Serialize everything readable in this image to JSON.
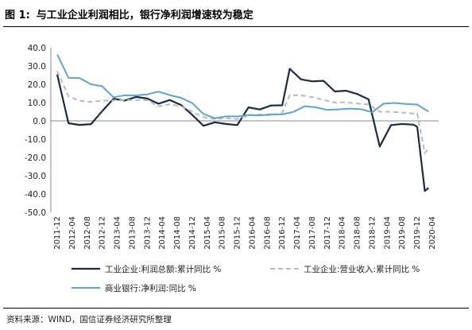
{
  "title": {
    "label": "图 1:",
    "text": "与工业企业利润相比，银行净利润增速较为稳定"
  },
  "source": "资料来源：WIND，国信证券经济研究所整理",
  "chart_data": {
    "type": "line",
    "title": "",
    "xlabel": "",
    "ylabel": "",
    "ylim": [
      -50,
      40
    ],
    "yticks": [
      "40.0",
      "30.0",
      "20.0",
      "10.0",
      "0.0",
      "-10.0",
      "-20.0",
      "-30.0",
      "-40.0",
      "-50.0"
    ],
    "xlim": [
      "2011-12",
      "2020-04"
    ],
    "x_ticks": [
      "2011-12",
      "2012-04",
      "2012-08",
      "2012-12",
      "2013-04",
      "2013-08",
      "2013-12",
      "2014-04",
      "2014-08",
      "2014-12",
      "2015-04",
      "2015-08",
      "2015-12",
      "2016-04",
      "2016-08",
      "2016-12",
      "2017-04",
      "2017-08",
      "2017-12",
      "2018-04",
      "2018-08",
      "2018-12",
      "2019-04",
      "2019-08",
      "2019-12",
      "2020-04"
    ],
    "grid": false,
    "legend_position": "bottom",
    "series": [
      {
        "name": "工业企业:利润总额:累计同比 %",
        "color": "#1a2b45",
        "dash": "solid",
        "x": [
          "2011-12",
          "2012-03",
          "2012-06",
          "2012-09",
          "2012-12",
          "2013-03",
          "2013-06",
          "2013-09",
          "2013-12",
          "2014-03",
          "2014-06",
          "2014-09",
          "2014-12",
          "2015-03",
          "2015-06",
          "2015-09",
          "2015-12",
          "2016-03",
          "2016-06",
          "2016-09",
          "2016-12",
          "2017-02",
          "2017-05",
          "2017-08",
          "2017-11",
          "2018-02",
          "2018-05",
          "2018-08",
          "2018-11",
          "2019-02",
          "2019-05",
          "2019-08",
          "2019-11",
          "2019-12",
          "2020-02",
          "2020-03"
        ],
        "y": [
          25.4,
          -1.3,
          -2.2,
          -1.8,
          5.3,
          12.1,
          11.1,
          13.1,
          12.2,
          9.4,
          11.4,
          8.7,
          3.3,
          -2.7,
          -0.8,
          -1.7,
          -2.3,
          7.4,
          6.2,
          8.4,
          8.5,
          28.5,
          22.7,
          21.6,
          21.9,
          16.1,
          16.5,
          14.7,
          11.8,
          -14.0,
          -2.3,
          -1.7,
          -2.1,
          -3.3,
          -38.3,
          -36.7
        ]
      },
      {
        "name": "工业企业:营业收入:累计同比 %",
        "color": "#b4bcc5",
        "dash": "dashed",
        "x": [
          "2011-12",
          "2012-03",
          "2012-06",
          "2012-09",
          "2012-12",
          "2013-03",
          "2013-06",
          "2013-09",
          "2013-12",
          "2014-03",
          "2014-06",
          "2014-09",
          "2014-12",
          "2015-03",
          "2015-06",
          "2015-09",
          "2015-12",
          "2016-03",
          "2016-06",
          "2016-09",
          "2016-12",
          "2017-02",
          "2017-05",
          "2017-08",
          "2017-11",
          "2018-02",
          "2018-05",
          "2018-08",
          "2018-11",
          "2019-02",
          "2019-05",
          "2019-08",
          "2019-11",
          "2019-12",
          "2020-02",
          "2020-03"
        ],
        "y": [
          27.2,
          13.5,
          11.0,
          10.4,
          11.0,
          11.2,
          11.3,
          11.4,
          11.2,
          8.0,
          9.0,
          8.0,
          5.0,
          2.0,
          1.0,
          1.5,
          1.0,
          3.0,
          3.5,
          3.0,
          4.5,
          14.0,
          14.0,
          13.0,
          11.5,
          10.0,
          10.2,
          9.5,
          9.0,
          5.0,
          5.0,
          4.5,
          4.0,
          4.0,
          -17.7,
          -15.0
        ]
      },
      {
        "name": "商业银行:净利润:同比 %",
        "color": "#5ba3d9",
        "dash": "solid",
        "x": [
          "2011-12",
          "2012-03",
          "2012-06",
          "2012-09",
          "2012-12",
          "2013-03",
          "2013-06",
          "2013-09",
          "2013-12",
          "2014-03",
          "2014-06",
          "2014-09",
          "2014-12",
          "2015-03",
          "2015-06",
          "2015-09",
          "2015-12",
          "2016-03",
          "2016-06",
          "2016-09",
          "2016-12",
          "2017-03",
          "2017-06",
          "2017-09",
          "2017-12",
          "2018-03",
          "2018-06",
          "2018-09",
          "2018-12",
          "2019-03",
          "2019-06",
          "2019-09",
          "2019-12",
          "2020-03"
        ],
        "y": [
          36.3,
          23.6,
          23.4,
          20.0,
          18.9,
          12.9,
          14.0,
          13.9,
          14.5,
          16.0,
          14.1,
          12.6,
          9.7,
          3.8,
          1.5,
          2.5,
          2.4,
          3.2,
          3.0,
          3.5,
          3.5,
          4.9,
          8.0,
          7.4,
          6.0,
          6.3,
          6.7,
          6.4,
          4.7,
          9.4,
          9.8,
          9.2,
          8.9,
          5.1
        ]
      }
    ]
  }
}
